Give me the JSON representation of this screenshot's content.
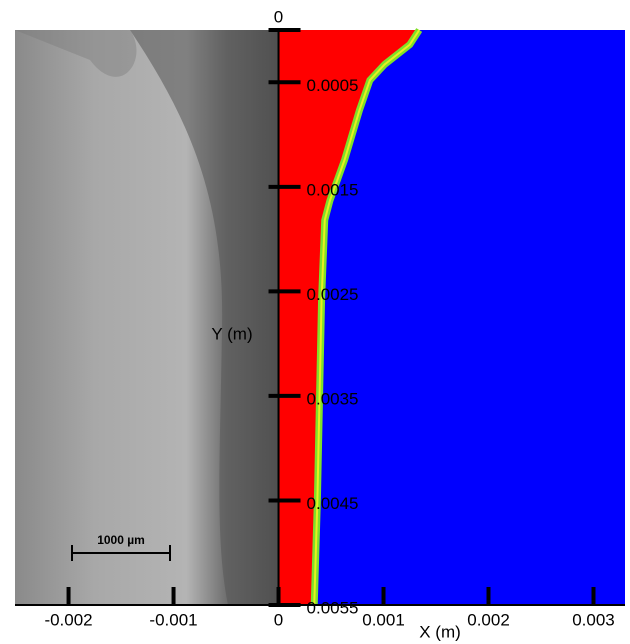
{
  "chart_data": {
    "type": "profile",
    "x_label": "X (m)",
    "y_label": "Y (m)",
    "scale_bar": "1000 µm",
    "xlim": [
      -0.00251,
      0.0033
    ],
    "ylim": [
      0,
      0.0055
    ],
    "y_inverted": true,
    "xticks": [
      -0.002,
      -0.001,
      0,
      0.001,
      0.002,
      0.003
    ],
    "yticks": [
      0,
      0.0005,
      0.0015,
      0.0025,
      0.0035,
      0.0045,
      0.0055
    ],
    "boundary": {
      "x": [
        0.00134,
        0.00125,
        0.00101,
        0.00087,
        0.00077,
        0.00063,
        0.00049,
        0.00044,
        0.00041,
        0.00039,
        0.00037,
        0.00034
      ],
      "y": [
        0,
        0.00014,
        0.00033,
        0.00048,
        0.00077,
        0.00124,
        0.00163,
        0.00182,
        0.00258,
        0.00354,
        0.0045,
        0.0055
      ]
    },
    "colors": {
      "melted": "#ff0000",
      "solid": "#0000ff",
      "interface": "#7ee02a"
    }
  }
}
